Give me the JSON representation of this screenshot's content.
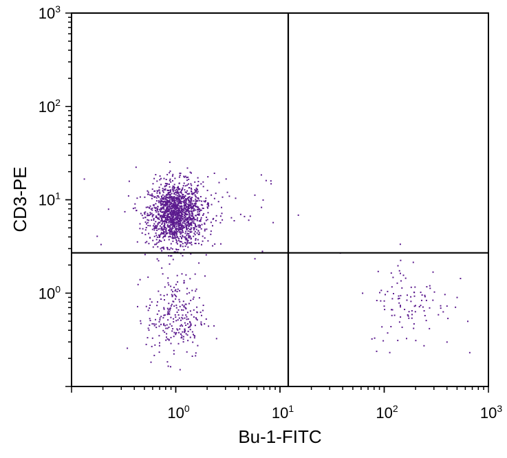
{
  "chart_data": {
    "type": "scatter",
    "title": "",
    "xlabel": "Bu-1-FITC",
    "ylabel": "CD3-PE",
    "xscale": "log",
    "yscale": "log",
    "xlim": [
      0.1,
      1000
    ],
    "ylim": [
      0.1,
      1000
    ],
    "x_ticks": [
      {
        "base": "10",
        "exp": "0",
        "value": 1
      },
      {
        "base": "10",
        "exp": "1",
        "value": 10
      },
      {
        "base": "10",
        "exp": "2",
        "value": 100
      },
      {
        "base": "10",
        "exp": "3",
        "value": 1000
      }
    ],
    "y_ticks": [
      {
        "base": "10",
        "exp": "0",
        "value": 1
      },
      {
        "base": "10",
        "exp": "1",
        "value": 10
      },
      {
        "base": "10",
        "exp": "2",
        "value": 100
      },
      {
        "base": "10",
        "exp": "3",
        "value": 1000
      }
    ],
    "gates": {
      "x": 12,
      "y": 2.7
    },
    "point_color": "#5b1a8e",
    "clusters": [
      {
        "name": "upper-left",
        "center": [
          1.0,
          7.0
        ],
        "log_sd": [
          0.13,
          0.17
        ],
        "count": 1400
      },
      {
        "name": "upper-left-sparse",
        "center": [
          1.5,
          8.0
        ],
        "log_sd": [
          0.35,
          0.25
        ],
        "count": 110
      },
      {
        "name": "lower-left",
        "center": [
          1.0,
          0.55
        ],
        "log_sd": [
          0.14,
          0.22
        ],
        "count": 260
      },
      {
        "name": "lower-right",
        "center": [
          180,
          0.8
        ],
        "log_sd": [
          0.2,
          0.25
        ],
        "count": 110
      }
    ]
  }
}
